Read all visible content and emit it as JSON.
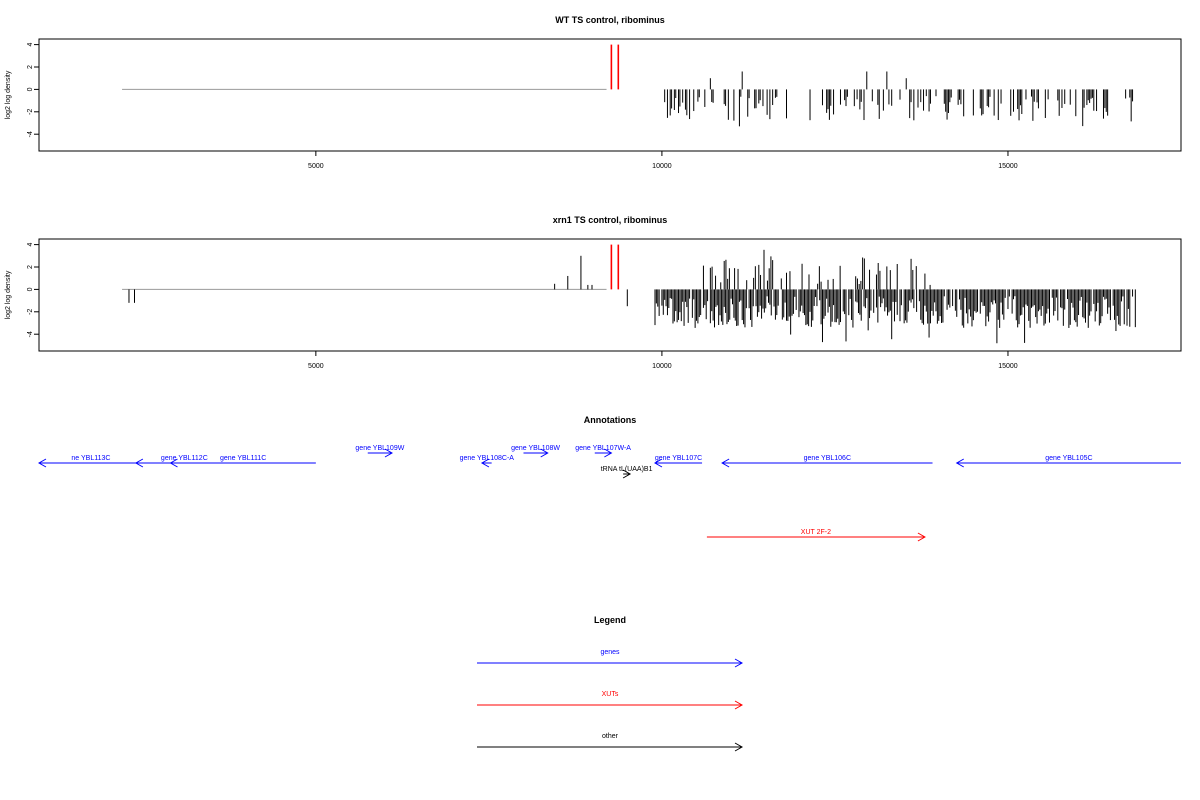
{
  "colors": {
    "gene": "#0000ff",
    "xut": "#ff0000",
    "other": "#000000",
    "bar": "#000000",
    "highlight": "#ff0000",
    "baseline": "#999999"
  },
  "chart_data": [
    {
      "type": "bar",
      "title": "WT TS control, ribominus",
      "ylabel": "log2 log density",
      "xlim": [
        1000,
        17500
      ],
      "ylim": [
        -5.5,
        4.5
      ],
      "yticks": [
        "4",
        "2",
        "0",
        "-2",
        "-4"
      ],
      "ytick_values": [
        4,
        2,
        0,
        -2,
        -4
      ],
      "xticks": [
        "5000",
        "10000",
        "15000"
      ],
      "xtick_values": [
        5000,
        10000,
        15000
      ],
      "baseline_range": [
        2200,
        9200
      ],
      "highlight_bars": [
        {
          "x": 9270,
          "y": 4
        },
        {
          "x": 9370,
          "y": 4
        }
      ],
      "bars_positive": [
        [
          10700,
          1.0
        ],
        [
          11160,
          1.6
        ],
        [
          12960,
          1.6
        ],
        [
          13250,
          1.6
        ],
        [
          13530,
          1.0
        ]
      ],
      "negative_range": [
        10000,
        16800
      ],
      "negative_range_2": [
        16700,
        16850
      ],
      "negative_density": 0.35,
      "negative_min": -4.0,
      "seed": 7
    },
    {
      "type": "bar",
      "title": "xrn1 TS control, ribominus",
      "ylabel": "log2 log density",
      "xlim": [
        1000,
        17500
      ],
      "ylim": [
        -5.5,
        4.5
      ],
      "yticks": [
        "4",
        "2",
        "0",
        "-2",
        "-4"
      ],
      "ytick_values": [
        4,
        2,
        0,
        -2,
        -4
      ],
      "xticks": [
        "5000",
        "10000",
        "15000"
      ],
      "xtick_values": [
        5000,
        10000,
        15000
      ],
      "baseline_range": [
        2200,
        9200
      ],
      "highlight_bars": [
        {
          "x": 9270,
          "y": 4
        },
        {
          "x": 9370,
          "y": 4
        }
      ],
      "bars_left": [
        [
          2300,
          -1.2
        ],
        [
          2380,
          -1.2
        ],
        [
          8450,
          0.5
        ],
        [
          8640,
          1.2
        ],
        [
          8830,
          3.0
        ],
        [
          8930,
          0.4
        ],
        [
          8990,
          0.4
        ],
        [
          9500,
          -1.5
        ]
      ],
      "negative_range": [
        9900,
        16850
      ],
      "negative_density": 0.9,
      "negative_min": -5.0,
      "positive_range": [
        10600,
        13900
      ],
      "positive_density": 0.35,
      "positive_max": 4.0,
      "seed": 11
    }
  ],
  "annotations": {
    "title": "Annotations",
    "xlim": [
      1000,
      17500
    ],
    "items": [
      {
        "label": "ne YBL113C",
        "kind": "gene",
        "x1": 1000,
        "x2": 2500,
        "dir": "left",
        "row": 2
      },
      {
        "label": "gene YBL112C",
        "kind": "gene",
        "x1": 2400,
        "x2": 3800,
        "dir": "left",
        "row": 2
      },
      {
        "label": "gene YBL111C",
        "kind": "gene",
        "x1": 2900,
        "x2": 5000,
        "dir": "left",
        "row": 2
      },
      {
        "label": "gene YBL109W",
        "kind": "gene",
        "x1": 5750,
        "x2": 6100,
        "dir": "right",
        "row": 1
      },
      {
        "label": "gene YBL108C-A",
        "kind": "gene",
        "x1": 7400,
        "x2": 7540,
        "dir": "left",
        "row": 2
      },
      {
        "label": "gene YBL108W",
        "kind": "gene",
        "x1": 8000,
        "x2": 8350,
        "dir": "right",
        "row": 1
      },
      {
        "label": "gene YBL107W-A",
        "kind": "gene",
        "x1": 9030,
        "x2": 9270,
        "dir": "right",
        "row": 1
      },
      {
        "label": "gene YBL107C",
        "kind": "gene",
        "x1": 9900,
        "x2": 10580,
        "dir": "left",
        "row": 2
      },
      {
        "label": "tRNA tL(UAA)B1",
        "kind": "other",
        "x1": 9440,
        "x2": 9540,
        "dir": "right",
        "row": 3
      },
      {
        "label": "gene YBL106C",
        "kind": "gene",
        "x1": 10870,
        "x2": 13910,
        "dir": "left",
        "row": 2
      },
      {
        "label": "gene YBL105C",
        "kind": "gene",
        "x1": 14260,
        "x2": 17500,
        "dir": "left",
        "row": 2
      },
      {
        "label": "XUT 2F-2",
        "kind": "xut",
        "x1": 10650,
        "x2": 13800,
        "dir": "right",
        "row": 4
      }
    ]
  },
  "legend": {
    "title": "Legend",
    "entries": [
      {
        "label": "genes",
        "kind": "gene"
      },
      {
        "label": "XUTs",
        "kind": "xut"
      },
      {
        "label": "other",
        "kind": "other"
      }
    ]
  }
}
